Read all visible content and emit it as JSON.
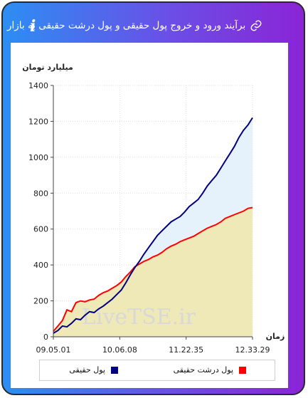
{
  "header": {
    "title": "برآیند ورود و خروج پول حقیقی و پول درشت حقیقی به بازار",
    "info_symbol": "i"
  },
  "watermark": "LiveTSE.ir",
  "colors": {
    "frame_start": "#2c8ef3",
    "frame_end": "#8a24d6",
    "series_real": "#000080",
    "series_big_real": "#ff0000",
    "fill_real": "#e6f2fb",
    "fill_big_real": "#efe9b8"
  },
  "chart_data": {
    "type": "area",
    "ylabel": "میلیارد تومان",
    "xlabel": "زمان",
    "ylim": [
      0,
      1400
    ],
    "yticks": [
      0,
      200,
      400,
      600,
      800,
      1000,
      1200,
      1400
    ],
    "xticks": [
      "09.05.01",
      "10.06.08",
      "11.22.35",
      "12.33.29"
    ],
    "grid": true,
    "legend_placement": "bottom",
    "series": [
      {
        "name": "پول حقیقی",
        "color": "#000080",
        "values": [
          20,
          35,
          60,
          55,
          75,
          100,
          95,
          120,
          140,
          135,
          155,
          170,
          190,
          210,
          235,
          260,
          300,
          345,
          385,
          420,
          460,
          495,
          530,
          565,
          590,
          615,
          640,
          655,
          670,
          695,
          725,
          745,
          765,
          800,
          840,
          870,
          900,
          940,
          980,
          1020,
          1060,
          1110,
          1150,
          1180,
          1220
        ]
      },
      {
        "name": "پول درشت حقیقی",
        "color": "#ff0000",
        "values": [
          30,
          60,
          90,
          150,
          140,
          190,
          200,
          195,
          205,
          210,
          230,
          245,
          255,
          270,
          285,
          305,
          335,
          360,
          390,
          405,
          420,
          430,
          445,
          455,
          470,
          490,
          505,
          515,
          530,
          540,
          550,
          560,
          575,
          590,
          605,
          615,
          625,
          640,
          660,
          670,
          680,
          690,
          700,
          715,
          720
        ]
      }
    ]
  }
}
